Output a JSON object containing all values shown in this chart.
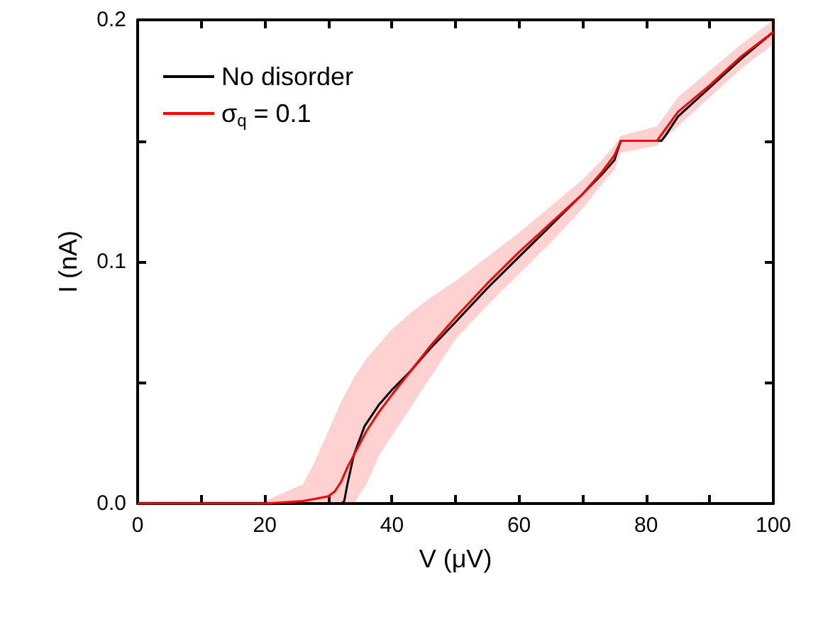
{
  "chart_data": {
    "type": "line",
    "xlabel": "V (μV)",
    "ylabel": "I (nA)",
    "xlim": [
      0,
      100
    ],
    "ylim": [
      0,
      0.2
    ],
    "xticks": [
      0,
      {
        "value": 10,
        "label": null
      },
      20,
      {
        "value": 30,
        "label": null
      },
      40,
      {
        "value": 50,
        "label": null
      },
      60,
      {
        "value": 70,
        "label": null
      },
      80,
      {
        "value": 90,
        "label": null
      },
      100
    ],
    "yticks": [
      {
        "value": 0,
        "label": "0.0"
      },
      {
        "value": 0.05,
        "label": null
      },
      0.1,
      {
        "value": 0.15,
        "label": null
      },
      0.2
    ],
    "grid": false,
    "legend": "top left",
    "marker": "none",
    "line_style": "solid",
    "series": [
      {
        "name": "No disorder",
        "color": "#000000",
        "x": [
          0,
          10,
          20,
          30,
          32,
          32.5,
          33,
          34,
          35.7,
          38,
          40,
          43,
          46,
          50,
          55,
          60,
          65,
          70,
          73,
          75,
          76,
          82.4,
          83,
          85,
          90,
          95,
          100
        ],
        "values": [
          0,
          0,
          0,
          0,
          0,
          0.001,
          0.008,
          0.02,
          0.032,
          0.041,
          0.047,
          0.055,
          0.064,
          0.075,
          0.089,
          0.102,
          0.115,
          0.128,
          0.136,
          0.142,
          0.15,
          0.15,
          0.152,
          0.16,
          0.172,
          0.184,
          0.195
        ]
      },
      {
        "name": "σ$_{q}$ = 0.1",
        "color": "#ff0000",
        "x": [
          0,
          10,
          20,
          26,
          28,
          30,
          31,
          32,
          33,
          34,
          36,
          38,
          40,
          43,
          46,
          50,
          55,
          60,
          65,
          70,
          73,
          75,
          76,
          81.7,
          85,
          90,
          95,
          100
        ],
        "values": [
          0,
          0,
          0,
          0.001,
          0.002,
          0.003,
          0.005,
          0.009,
          0.015,
          0.02,
          0.03,
          0.038,
          0.045,
          0.055,
          0.065,
          0.077,
          0.091,
          0.104,
          0.116,
          0.128,
          0.137,
          0.144,
          0.15,
          0.15,
          0.162,
          0.173,
          0.185,
          0.195
        ],
        "lower": [
          0,
          0,
          0,
          0,
          0,
          0,
          0,
          0,
          0,
          0,
          0.008,
          0.02,
          0.028,
          0.04,
          0.052,
          0.068,
          0.082,
          0.095,
          0.108,
          0.122,
          0.132,
          0.138,
          0.145,
          0.148,
          0.156,
          0.168,
          0.18,
          0.19
        ],
        "upper": [
          0.001,
          0.001,
          0.001,
          0.008,
          0.018,
          0.03,
          0.036,
          0.042,
          0.047,
          0.052,
          0.06,
          0.066,
          0.072,
          0.079,
          0.085,
          0.092,
          0.102,
          0.112,
          0.123,
          0.134,
          0.142,
          0.148,
          0.152,
          0.156,
          0.168,
          0.179,
          0.19,
          0.2
        ]
      }
    ]
  }
}
